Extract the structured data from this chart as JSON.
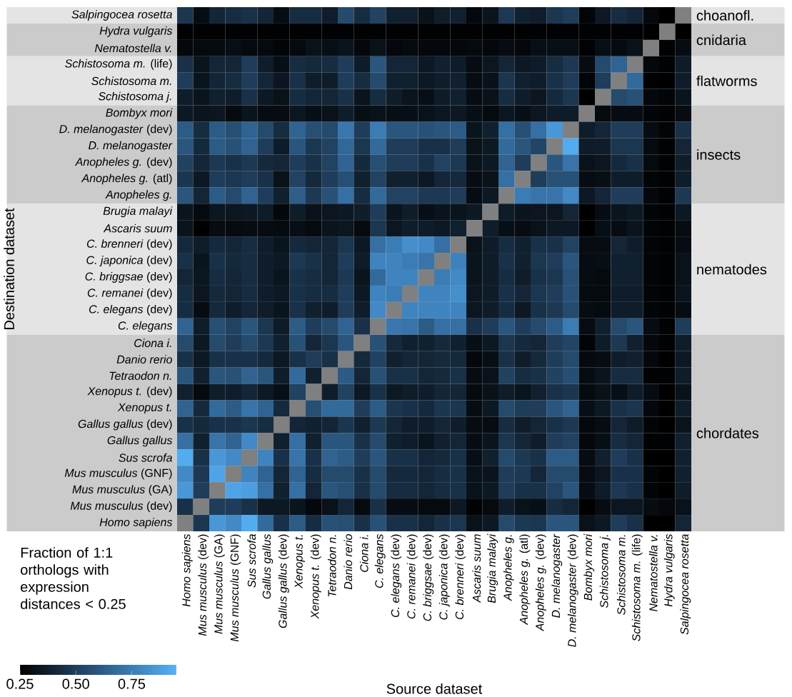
{
  "chart_data": {
    "type": "heatmap",
    "xlabel": "Source dataset",
    "ylabel": "Destination dataset",
    "clabel": "Fraction of 1:1 orthologs with expression distances < 0.25",
    "categories": [
      "*Homo sapiens*",
      "*Mus musculus* (dev)",
      "*Mus musculus* (GA)",
      "*Mus musculus* (GNF)",
      "*Sus scrofa*",
      "*Gallus gallus*",
      "*Gallus gallus* (dev)",
      "*Xenopus t.*",
      "*Xenopus t.* (dev)",
      "*Tetraodon n.*",
      "*Danio rerio*",
      "*Ciona i.*",
      "*C. elegans*",
      "*C. elegans* (dev)",
      "*C. remanei* (dev)",
      "*C. briggsae* (dev)",
      "*C. japonica* (dev)",
      "*C. brenneri* (dev)",
      "*Ascaris suum*",
      "*Brugia malayi*",
      "*Anopheles g.*",
      "*Anopheles g.* (atl)",
      "*Anopheles g.* (dev)",
      "*D. melanogaster*",
      "*D. melanogaster* (dev)",
      "*Bombyx mori*",
      "*Schistosoma j.*",
      "*Schistosoma m.*",
      "*Schistosoma m.* (life)",
      "*Nematostella v.*",
      "*Hydra vulgaris*",
      "*Salpingocea rosetta*"
    ],
    "y_categories": [
      "*Salpingocea rosetta*",
      "*Hydra vulgaris*",
      "*Nematostella v.*",
      "*Schistosoma m.* (life)",
      "*Schistosoma m.*",
      "*Schistosoma j.*",
      "*Bombyx mori*",
      "*D. melanogaster* (dev)",
      "*D. melanogaster*",
      "*Anopheles g.* (dev)",
      "*Anopheles g.* (atl)",
      "*Anopheles g.*",
      "*Brugia malayi*",
      "*Ascaris suum*",
      "*C. brenneri* (dev)",
      "*C. japonica* (dev)",
      "*C. briggsae* (dev)",
      "*C. remanei* (dev)",
      "*C. elegans* (dev)",
      "*C. elegans*",
      "*Ciona i.*",
      "*Danio rerio*",
      "*Tetraodon n.*",
      "*Xenopus t.* (dev)",
      "*Xenopus t.*",
      "*Gallus gallus* (dev)",
      "*Gallus gallus*",
      "*Sus scrofa*",
      "*Mus musculus* (GNF)",
      "*Mus musculus* (GA)",
      "*Mus musculus* (dev)",
      "*Homo sapiens*"
    ],
    "cells": [
      [
        0.47,
        0.3,
        0.4,
        0.43,
        0.45,
        0.4,
        0.3,
        0.43,
        0.43,
        0.37,
        0.55,
        0.43,
        0.52,
        0.38,
        0.38,
        0.32,
        0.37,
        0.38,
        0.28,
        0.33,
        0.48,
        0.38,
        0.37,
        0.47,
        0.5,
        0.27,
        0.35,
        0.43,
        0.4,
        0.28,
        0.25,
        null
      ],
      [
        0.26,
        0.26,
        0.26,
        0.26,
        0.26,
        0.26,
        0.26,
        0.26,
        0.26,
        0.26,
        0.26,
        0.26,
        0.26,
        0.26,
        0.26,
        0.26,
        0.26,
        0.26,
        0.26,
        0.26,
        0.26,
        0.26,
        0.26,
        0.26,
        0.26,
        0.26,
        0.26,
        0.26,
        0.26,
        0.25,
        null,
        0.25
      ],
      [
        0.28,
        0.29,
        0.29,
        0.31,
        0.29,
        0.29,
        0.27,
        0.29,
        0.32,
        0.31,
        0.33,
        0.28,
        0.32,
        0.28,
        0.29,
        0.28,
        0.28,
        0.28,
        0.29,
        0.28,
        0.3,
        0.28,
        0.31,
        0.31,
        0.31,
        0.26,
        0.31,
        0.29,
        0.32,
        null,
        0.26,
        0.3
      ],
      [
        0.45,
        0.33,
        0.4,
        0.4,
        0.5,
        0.37,
        0.31,
        0.43,
        0.42,
        0.43,
        0.5,
        0.36,
        0.6,
        0.4,
        0.4,
        0.35,
        0.38,
        0.36,
        0.3,
        0.34,
        0.4,
        0.35,
        0.36,
        0.43,
        0.48,
        0.3,
        0.55,
        0.65,
        null,
        0.28,
        0.26,
        0.36
      ],
      [
        0.5,
        0.33,
        0.4,
        0.43,
        0.5,
        0.4,
        0.34,
        0.45,
        0.37,
        0.37,
        0.5,
        0.43,
        0.55,
        0.38,
        0.38,
        0.35,
        0.37,
        0.38,
        0.3,
        0.32,
        0.47,
        0.38,
        0.37,
        0.45,
        0.5,
        0.27,
        0.5,
        null,
        0.68,
        0.26,
        0.25,
        0.37
      ],
      [
        0.37,
        0.33,
        0.38,
        0.37,
        0.45,
        0.35,
        0.32,
        0.43,
        0.4,
        0.4,
        0.45,
        0.33,
        0.43,
        0.37,
        0.33,
        0.31,
        0.36,
        0.38,
        0.3,
        0.32,
        0.43,
        0.37,
        0.34,
        0.42,
        0.47,
        0.25,
        null,
        0.55,
        0.58,
        0.28,
        0.27,
        0.33
      ],
      [
        0.35,
        0.33,
        0.34,
        0.29,
        0.33,
        0.3,
        0.3,
        0.34,
        0.31,
        0.32,
        0.37,
        0.31,
        0.32,
        0.31,
        0.31,
        0.32,
        0.34,
        0.35,
        0.31,
        0.29,
        0.34,
        0.31,
        0.34,
        0.36,
        0.36,
        null,
        0.29,
        0.3,
        0.3,
        0.27,
        0.26,
        0.3
      ],
      [
        0.62,
        0.43,
        0.62,
        0.57,
        0.65,
        0.55,
        0.43,
        0.65,
        0.57,
        0.55,
        0.73,
        0.5,
        0.75,
        0.6,
        0.6,
        0.58,
        0.6,
        0.62,
        0.33,
        0.38,
        0.7,
        0.57,
        0.7,
        0.85,
        null,
        0.37,
        0.4,
        0.5,
        0.5,
        0.3,
        0.27,
        0.45
      ],
      [
        0.6,
        0.42,
        0.62,
        0.58,
        0.65,
        0.5,
        0.36,
        0.6,
        0.47,
        0.52,
        0.67,
        0.47,
        0.68,
        0.5,
        0.5,
        0.45,
        0.45,
        0.5,
        0.32,
        0.35,
        0.68,
        0.6,
        0.53,
        null,
        0.93,
        0.36,
        0.37,
        0.47,
        0.47,
        0.29,
        0.26,
        0.4
      ],
      [
        0.52,
        0.4,
        0.48,
        0.45,
        0.48,
        0.42,
        0.4,
        0.5,
        0.45,
        0.52,
        0.65,
        0.42,
        0.57,
        0.5,
        0.5,
        0.45,
        0.52,
        0.48,
        0.32,
        0.35,
        0.65,
        0.5,
        null,
        0.6,
        0.72,
        0.32,
        0.34,
        0.42,
        0.45,
        0.29,
        0.26,
        0.37
      ],
      [
        0.47,
        0.35,
        0.5,
        0.47,
        0.5,
        0.45,
        0.32,
        0.52,
        0.42,
        0.5,
        0.57,
        0.38,
        0.52,
        0.38,
        0.38,
        0.35,
        0.4,
        0.42,
        0.3,
        0.32,
        0.7,
        null,
        0.5,
        0.58,
        0.58,
        0.3,
        0.31,
        0.37,
        0.37,
        0.27,
        0.26,
        0.37
      ],
      [
        0.6,
        0.4,
        0.62,
        0.55,
        0.65,
        0.5,
        0.38,
        0.63,
        0.48,
        0.58,
        0.7,
        0.43,
        0.68,
        0.52,
        0.52,
        0.48,
        0.48,
        0.5,
        0.3,
        0.35,
        null,
        0.75,
        0.72,
        0.72,
        0.8,
        0.35,
        0.4,
        0.5,
        0.5,
        0.28,
        0.26,
        0.48
      ],
      [
        0.33,
        0.29,
        0.34,
        0.34,
        0.35,
        0.36,
        0.28,
        0.37,
        0.32,
        0.34,
        0.35,
        0.37,
        0.5,
        0.33,
        0.37,
        0.31,
        0.33,
        0.33,
        0.35,
        null,
        0.36,
        0.33,
        0.34,
        0.34,
        0.4,
        0.25,
        0.3,
        0.33,
        0.35,
        0.27,
        0.26,
        0.35
      ],
      [
        0.33,
        0.25,
        0.3,
        0.29,
        0.3,
        0.3,
        0.29,
        0.31,
        0.29,
        0.33,
        0.34,
        0.29,
        0.47,
        0.34,
        0.37,
        0.36,
        0.35,
        0.38,
        null,
        0.37,
        0.31,
        0.3,
        0.32,
        0.35,
        0.35,
        0.25,
        0.31,
        0.3,
        0.33,
        0.27,
        0.26,
        0.3
      ],
      [
        0.42,
        0.37,
        0.42,
        0.4,
        0.43,
        0.37,
        0.33,
        0.42,
        0.4,
        0.4,
        0.47,
        0.35,
        0.7,
        0.75,
        0.82,
        0.8,
        0.7,
        null,
        0.32,
        0.36,
        0.43,
        0.38,
        0.45,
        0.45,
        0.52,
        0.3,
        0.3,
        0.4,
        0.37,
        0.27,
        0.26,
        0.3
      ],
      [
        0.45,
        0.33,
        0.45,
        0.42,
        0.43,
        0.37,
        0.35,
        0.48,
        0.45,
        0.4,
        0.5,
        0.36,
        0.78,
        0.78,
        0.75,
        0.72,
        null,
        0.77,
        0.33,
        0.36,
        0.45,
        0.38,
        0.47,
        0.5,
        0.6,
        0.3,
        0.31,
        0.38,
        0.38,
        0.27,
        0.26,
        0.32
      ],
      [
        0.4,
        0.34,
        0.43,
        0.4,
        0.43,
        0.37,
        0.33,
        0.45,
        0.43,
        0.4,
        0.48,
        0.33,
        0.68,
        0.78,
        0.78,
        null,
        0.75,
        0.8,
        0.33,
        0.36,
        0.43,
        0.37,
        0.45,
        0.47,
        0.58,
        0.3,
        0.29,
        0.38,
        0.38,
        0.27,
        0.26,
        0.32
      ],
      [
        0.43,
        0.34,
        0.42,
        0.4,
        0.43,
        0.37,
        0.35,
        0.45,
        0.43,
        0.43,
        0.5,
        0.35,
        0.78,
        0.75,
        null,
        0.78,
        0.78,
        0.82,
        0.34,
        0.36,
        0.45,
        0.4,
        0.47,
        0.5,
        0.58,
        0.29,
        0.29,
        0.37,
        0.37,
        0.27,
        0.26,
        0.33
      ],
      [
        0.43,
        0.3,
        0.42,
        0.37,
        0.4,
        0.37,
        0.33,
        0.45,
        0.38,
        0.37,
        0.5,
        0.37,
        0.8,
        null,
        0.78,
        0.78,
        0.78,
        0.78,
        0.34,
        0.36,
        0.43,
        0.35,
        0.45,
        0.48,
        0.55,
        0.3,
        0.29,
        0.37,
        0.37,
        0.27,
        0.26,
        0.3
      ],
      [
        0.65,
        0.37,
        0.57,
        0.52,
        0.6,
        0.47,
        0.36,
        0.62,
        0.5,
        0.55,
        0.65,
        0.45,
        null,
        0.73,
        0.72,
        0.62,
        0.7,
        0.7,
        0.45,
        0.5,
        0.6,
        0.5,
        0.55,
        0.62,
        0.75,
        0.3,
        0.38,
        0.55,
        0.6,
        0.3,
        0.26,
        0.5
      ],
      [
        0.55,
        0.35,
        0.55,
        0.5,
        0.55,
        0.48,
        0.38,
        0.58,
        0.4,
        0.47,
        0.6,
        null,
        0.58,
        0.42,
        0.38,
        0.38,
        0.42,
        0.38,
        0.31,
        0.35,
        0.47,
        0.42,
        0.4,
        0.5,
        0.53,
        0.27,
        0.36,
        0.48,
        0.38,
        0.28,
        0.26,
        0.37
      ],
      [
        0.45,
        0.35,
        0.45,
        0.45,
        0.45,
        0.42,
        0.35,
        0.45,
        0.5,
        0.45,
        null,
        0.42,
        0.52,
        0.38,
        0.4,
        0.4,
        0.42,
        0.42,
        0.28,
        0.31,
        0.45,
        0.37,
        0.42,
        0.5,
        0.55,
        0.29,
        0.3,
        0.37,
        0.38,
        0.28,
        0.25,
        0.35
      ],
      [
        0.6,
        0.38,
        0.6,
        0.58,
        0.65,
        0.6,
        0.37,
        0.68,
        0.38,
        null,
        0.62,
        0.4,
        0.58,
        0.45,
        0.45,
        0.4,
        0.42,
        0.45,
        0.3,
        0.32,
        0.52,
        0.43,
        0.45,
        0.52,
        0.57,
        0.3,
        0.33,
        0.43,
        0.43,
        0.26,
        0.26,
        0.37
      ],
      [
        0.38,
        0.29,
        0.37,
        0.37,
        0.4,
        0.35,
        0.31,
        0.52,
        null,
        0.37,
        0.52,
        0.35,
        0.45,
        0.35,
        0.37,
        0.37,
        0.4,
        0.4,
        0.29,
        0.32,
        0.37,
        0.33,
        0.38,
        0.45,
        0.47,
        0.29,
        0.32,
        0.31,
        0.37,
        0.3,
        0.25,
        0.32
      ],
      [
        0.65,
        0.42,
        0.68,
        0.62,
        0.72,
        0.65,
        0.42,
        null,
        0.57,
        0.68,
        0.68,
        0.5,
        0.62,
        0.47,
        0.45,
        0.42,
        0.47,
        0.47,
        0.3,
        0.35,
        0.55,
        0.5,
        0.5,
        0.6,
        0.65,
        0.31,
        0.35,
        0.45,
        0.47,
        0.28,
        0.25,
        0.37
      ],
      [
        0.45,
        0.42,
        0.45,
        0.45,
        0.47,
        0.43,
        null,
        0.4,
        0.38,
        0.4,
        0.47,
        0.38,
        0.48,
        0.4,
        0.37,
        0.37,
        0.4,
        0.37,
        0.3,
        0.3,
        0.43,
        0.37,
        0.4,
        0.45,
        0.48,
        0.28,
        0.3,
        0.4,
        0.36,
        0.27,
        0.25,
        0.33
      ],
      [
        0.7,
        0.38,
        0.72,
        0.65,
        0.8,
        null,
        0.38,
        0.7,
        0.38,
        0.6,
        0.6,
        0.45,
        0.55,
        0.38,
        0.37,
        0.33,
        0.38,
        0.4,
        0.3,
        0.33,
        0.47,
        0.4,
        0.37,
        0.5,
        0.52,
        0.28,
        0.31,
        0.43,
        0.4,
        0.26,
        0.26,
        0.38
      ],
      [
        0.93,
        0.45,
        0.85,
        0.8,
        null,
        0.78,
        0.45,
        0.72,
        0.45,
        0.65,
        0.62,
        0.5,
        0.6,
        0.45,
        0.45,
        0.4,
        0.42,
        0.45,
        0.31,
        0.38,
        0.55,
        0.48,
        0.45,
        0.62,
        0.62,
        0.3,
        0.38,
        0.5,
        0.45,
        0.25,
        0.25,
        0.38
      ],
      [
        0.8,
        0.48,
        0.9,
        null,
        0.78,
        0.65,
        0.4,
        0.65,
        0.43,
        0.55,
        0.55,
        0.45,
        0.55,
        0.42,
        0.42,
        0.4,
        0.43,
        0.45,
        0.32,
        0.33,
        0.5,
        0.48,
        0.4,
        0.55,
        0.55,
        0.3,
        0.34,
        0.45,
        0.45,
        0.27,
        0.25,
        0.38
      ],
      [
        0.85,
        0.5,
        null,
        0.9,
        0.88,
        0.7,
        0.38,
        0.7,
        0.4,
        0.6,
        0.57,
        0.45,
        0.55,
        0.43,
        0.43,
        0.4,
        0.43,
        0.45,
        0.32,
        0.35,
        0.5,
        0.45,
        0.45,
        0.52,
        0.6,
        0.3,
        0.36,
        0.48,
        0.45,
        0.27,
        0.25,
        0.37
      ],
      [
        0.45,
        null,
        0.5,
        0.5,
        0.45,
        0.35,
        0.35,
        0.33,
        0.28,
        0.32,
        0.4,
        0.29,
        0.45,
        0.3,
        0.3,
        0.29,
        0.29,
        0.35,
        0.26,
        0.29,
        0.37,
        0.32,
        0.31,
        0.43,
        0.4,
        0.25,
        0.3,
        0.34,
        0.34,
        0.3,
        0.28,
        0.32
      ],
      [
        null,
        0.47,
        0.85,
        0.8,
        0.93,
        0.68,
        0.45,
        0.62,
        0.43,
        0.58,
        0.57,
        0.45,
        0.58,
        0.45,
        0.45,
        0.4,
        0.45,
        0.47,
        0.32,
        0.35,
        0.55,
        0.48,
        0.47,
        0.6,
        0.6,
        0.32,
        0.35,
        0.5,
        0.45,
        0.25,
        0.25,
        0.4
      ]
    ],
    "clim": [
      0.25,
      0.95
    ],
    "cticks": [
      {
        "value": 0.25,
        "label": "0.25"
      },
      {
        "value": 0.5,
        "label": "0.50"
      },
      {
        "value": 0.75,
        "label": "0.75"
      }
    ],
    "bands": [
      {
        "axis": "y",
        "from": "*Salpingocea rosetta*",
        "to": "*Salpingocea rosetta*",
        "label": "choanofl.",
        "color": "#e4e4e4"
      },
      {
        "axis": "y",
        "from": "*Hydra vulgaris*",
        "to": "*Nematostella v.*",
        "label": "cnidaria",
        "color": "#cbcbcb"
      },
      {
        "axis": "y",
        "from": "*Schistosoma m.* (life)",
        "to": "*Schistosoma j.*",
        "label": "flatworms",
        "color": "#e4e4e4"
      },
      {
        "axis": "y",
        "from": "*Bombyx mori*",
        "to": "*Anopheles g.*",
        "label": "insects",
        "color": "#cbcbcb"
      },
      {
        "axis": "y",
        "from": "*Brugia malayi*",
        "to": "*C. elegans*",
        "label": "nematodes",
        "color": "#e4e4e4"
      },
      {
        "axis": "y",
        "from": "*Ciona i.*",
        "to": "*Homo sapiens*",
        "label": "chordates",
        "color": "#cbcbcb"
      }
    ]
  }
}
